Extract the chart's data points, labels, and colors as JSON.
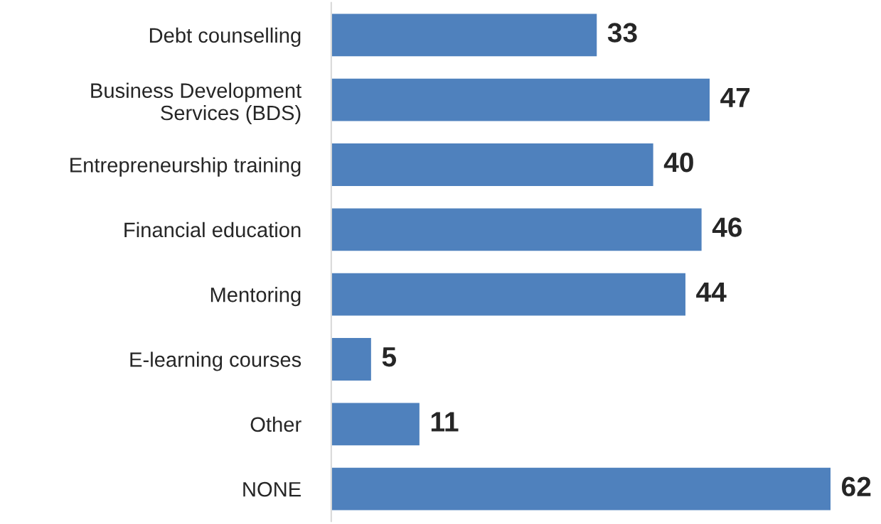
{
  "chart_data": {
    "type": "bar",
    "orientation": "horizontal",
    "categories": [
      "Debt counselling",
      "Business Development\nServices (BDS)",
      "Entrepreneurship training",
      "Financial education",
      "Mentoring",
      "E-learning courses",
      "Other",
      "NONE"
    ],
    "values": [
      33,
      47,
      40,
      46,
      44,
      5,
      11,
      62
    ],
    "color": "#4f81bd",
    "data_labels": true,
    "grid": false,
    "legend": false
  }
}
